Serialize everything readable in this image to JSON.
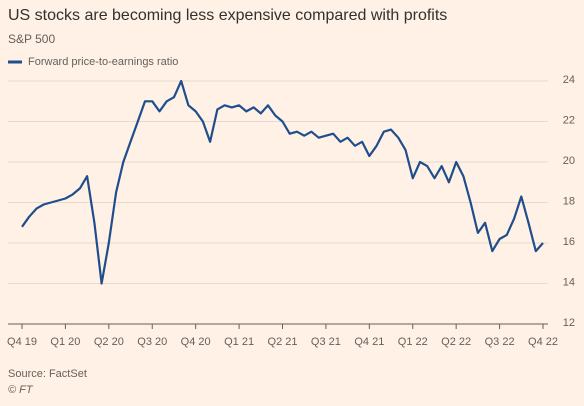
{
  "chart_data": {
    "type": "line",
    "title": "US stocks are becoming less expensive compared with profits",
    "subtitle": "S&P 500",
    "source": "Source: FactSet",
    "credit": "© FT",
    "categories": [
      "Q4 19",
      null,
      null,
      null,
      null,
      null,
      "Q1 20",
      null,
      null,
      null,
      null,
      null,
      "Q2 20",
      null,
      null,
      null,
      null,
      null,
      "Q3 20",
      null,
      null,
      null,
      null,
      null,
      "Q4 20",
      null,
      null,
      null,
      null,
      null,
      "Q1 21",
      null,
      null,
      null,
      null,
      null,
      "Q2 21",
      null,
      null,
      null,
      null,
      null,
      "Q3 21",
      null,
      null,
      null,
      null,
      null,
      "Q4 21",
      null,
      null,
      null,
      null,
      null,
      "Q1 22",
      null,
      null,
      null,
      null,
      null,
      "Q2 22",
      null,
      null,
      null,
      null,
      null,
      "Q3 22",
      null,
      null,
      null,
      null,
      null,
      "Q4 22"
    ],
    "series": [
      {
        "name": "Forward price-to-earnings ratio",
        "color": "#1f4e8c",
        "values": [
          16.8,
          17.3,
          17.7,
          17.9,
          18.0,
          18.1,
          18.2,
          18.4,
          18.7,
          19.3,
          17.0,
          14.0,
          16.0,
          18.5,
          20.0,
          21.0,
          22.0,
          23.0,
          23.0,
          22.5,
          23.0,
          23.2,
          24.0,
          22.8,
          22.5,
          22.0,
          21.0,
          22.6,
          22.8,
          22.7,
          22.8,
          22.5,
          22.7,
          22.4,
          22.8,
          22.3,
          22.0,
          21.4,
          21.5,
          21.3,
          21.5,
          21.2,
          21.3,
          21.4,
          21.0,
          21.2,
          20.8,
          21.0,
          20.3,
          20.8,
          21.5,
          21.6,
          21.2,
          20.6,
          19.2,
          20.0,
          19.8,
          19.2,
          19.8,
          19.0,
          20.0,
          19.3,
          18.0,
          16.5,
          17.0,
          15.6,
          16.2,
          16.4,
          17.2,
          18.3,
          17.0,
          15.6,
          16.0
        ]
      }
    ],
    "ylim": [
      12,
      24.2
    ],
    "yticks": [
      12,
      14,
      16,
      18,
      20,
      22,
      24
    ],
    "grid": true,
    "legend": "top-left"
  }
}
